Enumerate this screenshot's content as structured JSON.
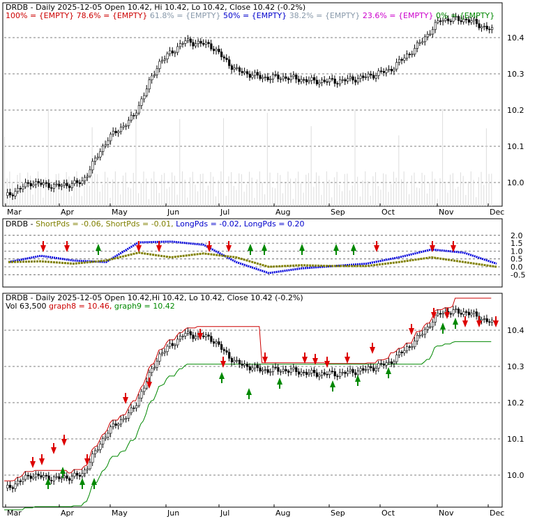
{
  "chart_data": [
    {
      "type": "candlestick",
      "panel": "price",
      "title": "DRDB - Daily 2025-12-05 Open 10.42, Hi 10.42, Lo 10.42, Close 10.42 (-0.2%)",
      "fib_legend": [
        {
          "text": "100% = {EMPTY}",
          "color": "#cc0000"
        },
        {
          "text": "78.6% = {EMPTY}",
          "color": "#cc0000"
        },
        {
          "text": "61.8% = {EMPTY}",
          "color": "#8899aa"
        },
        {
          "text": "50% = {EMPTY}",
          "color": "#0000cc"
        },
        {
          "text": "38.2% = {EMPTY}",
          "color": "#8899aa"
        },
        {
          "text": "23.6% = {EMPTY}",
          "color": "#cc00cc"
        },
        {
          "text": "0% = {EMPTY}",
          "color": "#008800"
        }
      ],
      "ylim": [
        9.93,
        10.5
      ],
      "y_ticks": [
        "10.4",
        "10.3",
        "10.2",
        "10.1",
        "10.0"
      ],
      "x_ticks": [
        "Mar",
        "Apr",
        "May",
        "Jun",
        "Jul",
        "Aug",
        "Sep",
        "Oct",
        "Nov",
        "Dec"
      ],
      "close_anchors": [
        [
          "Mar",
          9.96
        ],
        [
          "Apr",
          10.0
        ],
        [
          "Apr+",
          9.99
        ],
        [
          "Apr2",
          10.0
        ],
        [
          "May",
          10.12
        ],
        [
          "May+",
          10.18
        ],
        [
          "Jun",
          10.33
        ],
        [
          "Jun+",
          10.39
        ],
        [
          "Jun2",
          10.38
        ],
        [
          "Jul",
          10.31
        ],
        [
          "Jul+",
          10.29
        ],
        [
          "Aug",
          10.29
        ],
        [
          "Aug+",
          10.28
        ],
        [
          "Sep",
          10.28
        ],
        [
          "Sep+",
          10.29
        ],
        [
          "Oct",
          10.31
        ],
        [
          "Oct+",
          10.37
        ],
        [
          "Nov",
          10.45
        ],
        [
          "Nov+",
          10.45
        ],
        [
          "Dec",
          10.42
        ]
      ]
    },
    {
      "type": "line",
      "panel": "oscillator",
      "legend": [
        {
          "text": "DRDB - ",
          "color": "#000000"
        },
        {
          "text": "ShortPds = -0.06, ",
          "color": "#808000"
        },
        {
          "text": "ShortPds = -0.01, ",
          "color": "#808000"
        },
        {
          "text": "LongPds = -0.02, ",
          "color": "#0000cc"
        },
        {
          "text": "LongPds = 0.20",
          "color": "#0000cc"
        }
      ],
      "ylim": [
        -0.75,
        2.0
      ],
      "y_ticks": [
        "2.0",
        "1.5",
        "1.0",
        "0.5",
        "0.0",
        "-0.5"
      ],
      "series": [
        {
          "name": "LongPds",
          "color": "#0000dd",
          "x": [
            "Mar",
            "Apr",
            "Apr2",
            "May",
            "May2",
            "Jun",
            "Jun2",
            "Jul",
            "Jul2",
            "Aug",
            "Sep",
            "Oct",
            "Oct2",
            "Nov",
            "Nov2",
            "Dec"
          ],
          "values": [
            0.3,
            0.7,
            0.4,
            0.3,
            1.55,
            1.6,
            1.4,
            0.3,
            -0.4,
            -0.1,
            0.05,
            0.2,
            0.6,
            1.1,
            0.9,
            0.2
          ]
        },
        {
          "name": "ShortPds",
          "color": "#808000",
          "x": [
            "Mar",
            "Apr",
            "Apr2",
            "May",
            "May2",
            "Jun",
            "Jun2",
            "Jul",
            "Jul2",
            "Aug",
            "Sep",
            "Oct",
            "Oct2",
            "Nov",
            "Nov2",
            "Dec"
          ],
          "values": [
            0.3,
            0.35,
            0.2,
            0.4,
            0.9,
            0.6,
            0.85,
            0.6,
            0.0,
            0.1,
            0.05,
            0.05,
            0.3,
            0.6,
            0.3,
            0.0
          ]
        }
      ],
      "sell_signals": [
        "Mar2",
        "Apr",
        "May",
        "May2",
        "Jun",
        "Jul",
        "Oct2",
        "Nov"
      ],
      "buy_signals": [
        "Apr2",
        "Jul2",
        "Jul3",
        "Aug",
        "Aug2",
        "Sep"
      ]
    },
    {
      "type": "candlestick",
      "panel": "stops",
      "title": "DRDB - Daily 2025-12-05 Open 10.42,Hi 10.42, Lo 10.42, Close 10.42 (-0.2%)",
      "legend": [
        {
          "text": "Vol 63,500 ",
          "color": "#000000"
        },
        {
          "text": "graph8 = 10.46, ",
          "color": "#cc0000"
        },
        {
          "text": "graph9 = 10.42",
          "color": "#008800"
        }
      ],
      "ylim": [
        9.93,
        10.5
      ],
      "y_ticks": [
        "10.4",
        "10.3",
        "10.2",
        "10.1",
        "10.0"
      ],
      "x_ticks": [
        "Mar",
        "Apr",
        "May",
        "Jun",
        "Jul",
        "Aug",
        "Sep",
        "Oct",
        "Nov",
        "Dec"
      ],
      "series": [
        {
          "name": "graph8",
          "color": "#cc0000",
          "final_value": 10.46
        },
        {
          "name": "graph9",
          "color": "#008800",
          "final_value": 10.42
        }
      ]
    }
  ]
}
